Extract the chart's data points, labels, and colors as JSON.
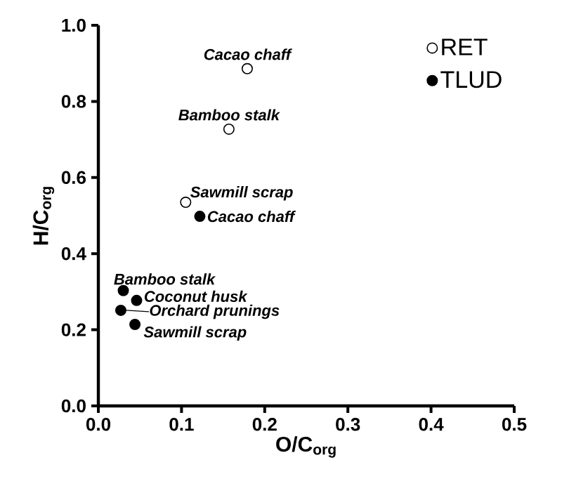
{
  "chart_data": {
    "type": "scatter",
    "xlabel": "O/C$_{org}$",
    "ylabel": "H/C$_{org}$",
    "xlim": [
      0,
      0.5
    ],
    "ylim": [
      0,
      1.0
    ],
    "xticks": [
      {
        "value": 0,
        "label": "0.0"
      },
      {
        "value": 0.1,
        "label": "0.1"
      },
      {
        "value": 0.2,
        "label": "0.2"
      },
      {
        "value": 0.3,
        "label": "0.3"
      },
      {
        "value": 0.4,
        "label": "0.4"
      },
      {
        "value": 0.5,
        "label": "0.5"
      }
    ],
    "yticks": [
      {
        "value": 0,
        "label": "0.0"
      },
      {
        "value": 0.2,
        "label": "0.2"
      },
      {
        "value": 0.4,
        "label": "0.4"
      },
      {
        "value": 0.6,
        "label": "0.6"
      },
      {
        "value": 0.8,
        "label": "0.8"
      },
      {
        "value": 1.0,
        "label": "1.0"
      }
    ],
    "series": [
      {
        "name": "RET",
        "color": "#ffffff",
        "x": [
          0.179,
          0.157,
          0.105
        ],
        "values": [
          0.886,
          0.727,
          0.535
        ]
      },
      {
        "name": "TLUD",
        "color": "#000000",
        "x": [
          0.122,
          0.03,
          0.046,
          0.027,
          0.044
        ],
        "values": [
          0.498,
          0.303,
          0.277,
          0.251,
          0.214
        ]
      }
    ],
    "annotations": [
      {
        "text": "Cacao chaff",
        "x": 0.179,
        "y": 0.886
      },
      {
        "text": "Bamboo stalk",
        "x": 0.157,
        "y": 0.727
      },
      {
        "text": "Sawmill scrap",
        "x": 0.105,
        "y": 0.535
      },
      {
        "text": "Cacao chaff",
        "x": 0.122,
        "y": 0.498
      },
      {
        "text": "Bamboo stalk",
        "x": 0.03,
        "y": 0.303
      },
      {
        "text": "Coconut husk",
        "x": 0.046,
        "y": 0.277
      },
      {
        "text": "Orchard prunings",
        "x": 0.027,
        "y": 0.251
      },
      {
        "text": "Sawmill scrap",
        "x": 0.044,
        "y": 0.214
      }
    ],
    "legend": "top right",
    "marker": "circle",
    "grid": false
  }
}
